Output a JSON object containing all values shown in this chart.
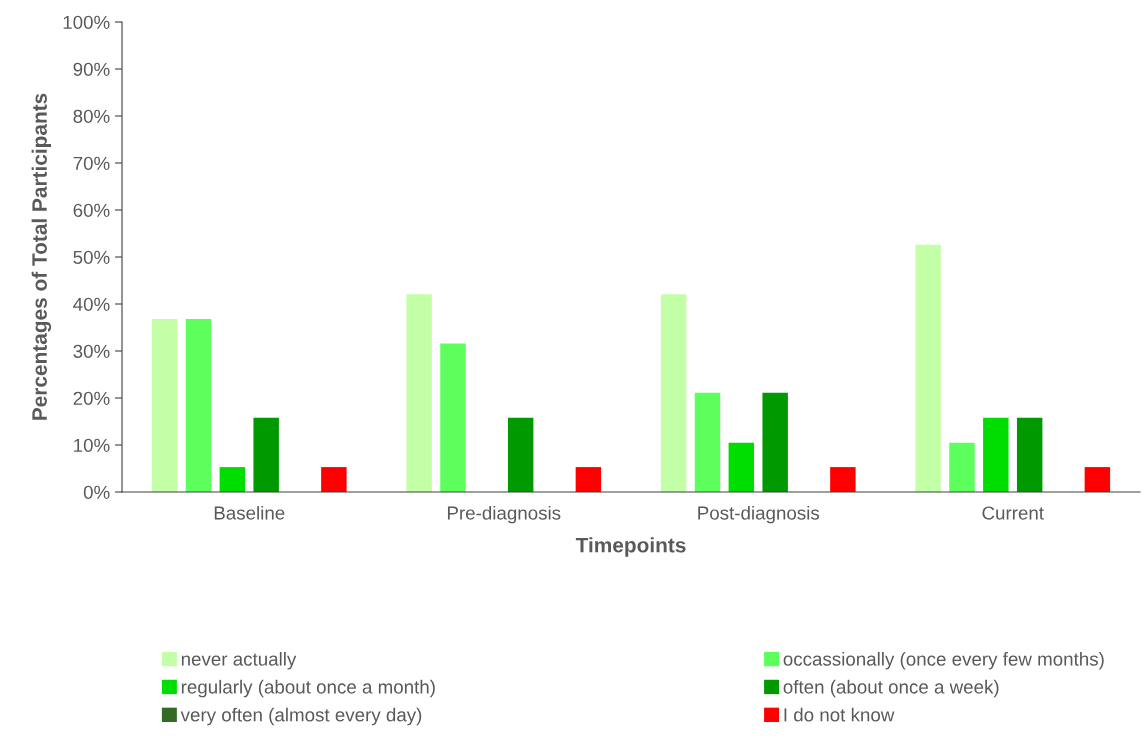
{
  "chart_data": {
    "type": "bar",
    "xlabel": "Timepoints",
    "ylabel": "Percentages of Total Participants",
    "categories": [
      "Baseline",
      "Pre-diagnosis",
      "Post-diagnosis",
      "Current"
    ],
    "series": [
      {
        "name": "never actually",
        "color": "#c2ffa6",
        "values": [
          36.8,
          42.1,
          42.1,
          52.6
        ]
      },
      {
        "name": "occassionally (once every few months)",
        "color": "#5cff5c",
        "values": [
          36.8,
          31.6,
          21.1,
          10.5
        ]
      },
      {
        "name": "regularly (about once a month)",
        "color": "#00dd00",
        "values": [
          5.3,
          0,
          10.5,
          15.8
        ]
      },
      {
        "name": "often (about once a week)",
        "color": "#009a00",
        "values": [
          15.8,
          15.8,
          21.1,
          15.8
        ]
      },
      {
        "name": "very often (almost every day)",
        "color": "#336b26",
        "values": [
          0,
          0,
          0,
          0
        ]
      },
      {
        "name": "I do not know",
        "color": "#ff0000",
        "values": [
          5.3,
          5.3,
          5.3,
          5.3
        ]
      }
    ],
    "ylim": [
      0,
      100
    ],
    "yticks": [
      {
        "value": 0,
        "label": "0%"
      },
      {
        "value": 10,
        "label": "10%"
      },
      {
        "value": 20,
        "label": "20%"
      },
      {
        "value": 30,
        "label": "30%"
      },
      {
        "value": 40,
        "label": "40%"
      },
      {
        "value": 50,
        "label": "50%"
      },
      {
        "value": 60,
        "label": "60%"
      },
      {
        "value": 70,
        "label": "70%"
      },
      {
        "value": 80,
        "label": "80%"
      },
      {
        "value": 90,
        "label": "90%"
      },
      {
        "value": 100,
        "label": "100%"
      }
    ],
    "grid": false,
    "legend": "bottom"
  }
}
